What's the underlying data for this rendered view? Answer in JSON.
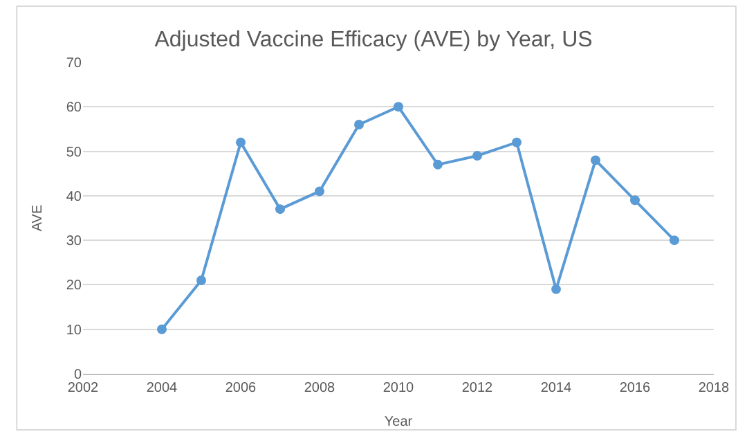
{
  "chart_data": {
    "type": "line",
    "title": "Adjusted Vaccine Efficacy (AVE) by Year, US",
    "xlabel": "Year",
    "ylabel": "AVE",
    "x": [
      2004,
      2005,
      2006,
      2007,
      2008,
      2009,
      2010,
      2011,
      2012,
      2013,
      2014,
      2015,
      2016,
      2017
    ],
    "series": [
      {
        "color": "#5b9bd5",
        "values": [
          10,
          21,
          52,
          37,
          41,
          56,
          60,
          47,
          49,
          52,
          19,
          48,
          39,
          30
        ]
      }
    ],
    "xlim": [
      2002,
      2018
    ],
    "xticks": [
      2002,
      2004,
      2006,
      2008,
      2010,
      2012,
      2014,
      2016,
      2018
    ],
    "ylim": [
      0,
      70
    ],
    "yticks": [
      0,
      10,
      20,
      30,
      40,
      50,
      60,
      70
    ],
    "grid": "y",
    "marker": "circle",
    "line_style": "solid",
    "legend": false
  }
}
